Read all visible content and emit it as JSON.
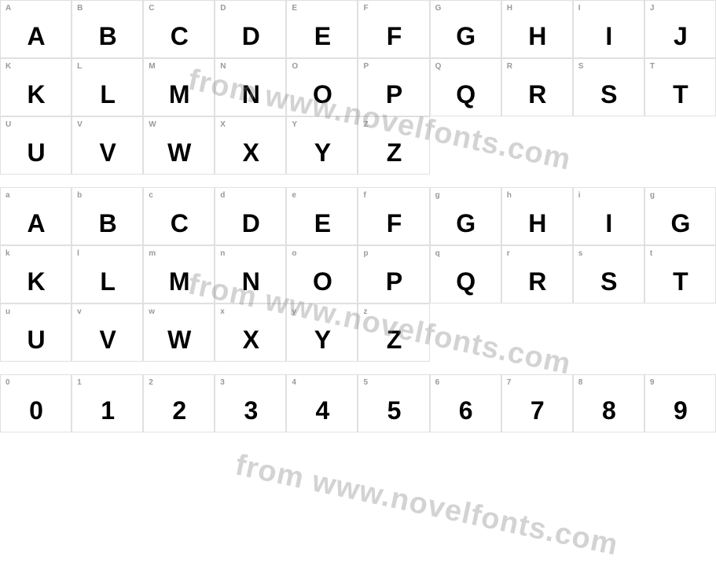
{
  "watermark_text": "from www.novelfonts.com",
  "watermark_color": "rgba(128,128,128,0.35)",
  "grid_border_color": "#e0e0e0",
  "label_color": "#999999",
  "glyph_color": "#000000",
  "background_color": "#ffffff",
  "label_fontsize": 10,
  "glyph_fontsize": 32,
  "sections": [
    {
      "type": "uppercase",
      "rows": [
        {
          "labels": [
            "A",
            "B",
            "C",
            "D",
            "E",
            "F",
            "G",
            "H",
            "I",
            "J"
          ],
          "glyphs": [
            "A",
            "B",
            "C",
            "D",
            "E",
            "F",
            "G",
            "H",
            "I",
            "J"
          ]
        },
        {
          "labels": [
            "K",
            "L",
            "M",
            "N",
            "O",
            "P",
            "Q",
            "R",
            "S",
            "T"
          ],
          "glyphs": [
            "K",
            "L",
            "M",
            "N",
            "O",
            "P",
            "Q",
            "R",
            "S",
            "T"
          ]
        },
        {
          "labels": [
            "U",
            "V",
            "W",
            "X",
            "Y",
            "Z",
            "",
            "",
            "",
            ""
          ],
          "glyphs": [
            "U",
            "V",
            "W",
            "X",
            "Y",
            "Z",
            "",
            "",
            "",
            ""
          ]
        }
      ]
    },
    {
      "type": "lowercase",
      "rows": [
        {
          "labels": [
            "a",
            "b",
            "c",
            "d",
            "e",
            "f",
            "g",
            "h",
            "i",
            "g"
          ],
          "glyphs": [
            "A",
            "B",
            "C",
            "D",
            "E",
            "F",
            "G",
            "H",
            "I",
            "G"
          ]
        },
        {
          "labels": [
            "k",
            "l",
            "m",
            "n",
            "o",
            "p",
            "q",
            "r",
            "s",
            "t"
          ],
          "glyphs": [
            "K",
            "L",
            "M",
            "N",
            "O",
            "P",
            "Q",
            "R",
            "S",
            "T"
          ]
        },
        {
          "labels": [
            "u",
            "v",
            "w",
            "x",
            "y",
            "z",
            "",
            "",
            "",
            ""
          ],
          "glyphs": [
            "U",
            "V",
            "W",
            "X",
            "Y",
            "Z",
            "",
            "",
            "",
            ""
          ]
        }
      ]
    },
    {
      "type": "digits",
      "rows": [
        {
          "labels": [
            "0",
            "1",
            "2",
            "3",
            "4",
            "5",
            "6",
            "7",
            "8",
            "9"
          ],
          "glyphs": [
            "0",
            "1",
            "2",
            "3",
            "4",
            "5",
            "6",
            "7",
            "8",
            "9"
          ]
        }
      ]
    }
  ]
}
